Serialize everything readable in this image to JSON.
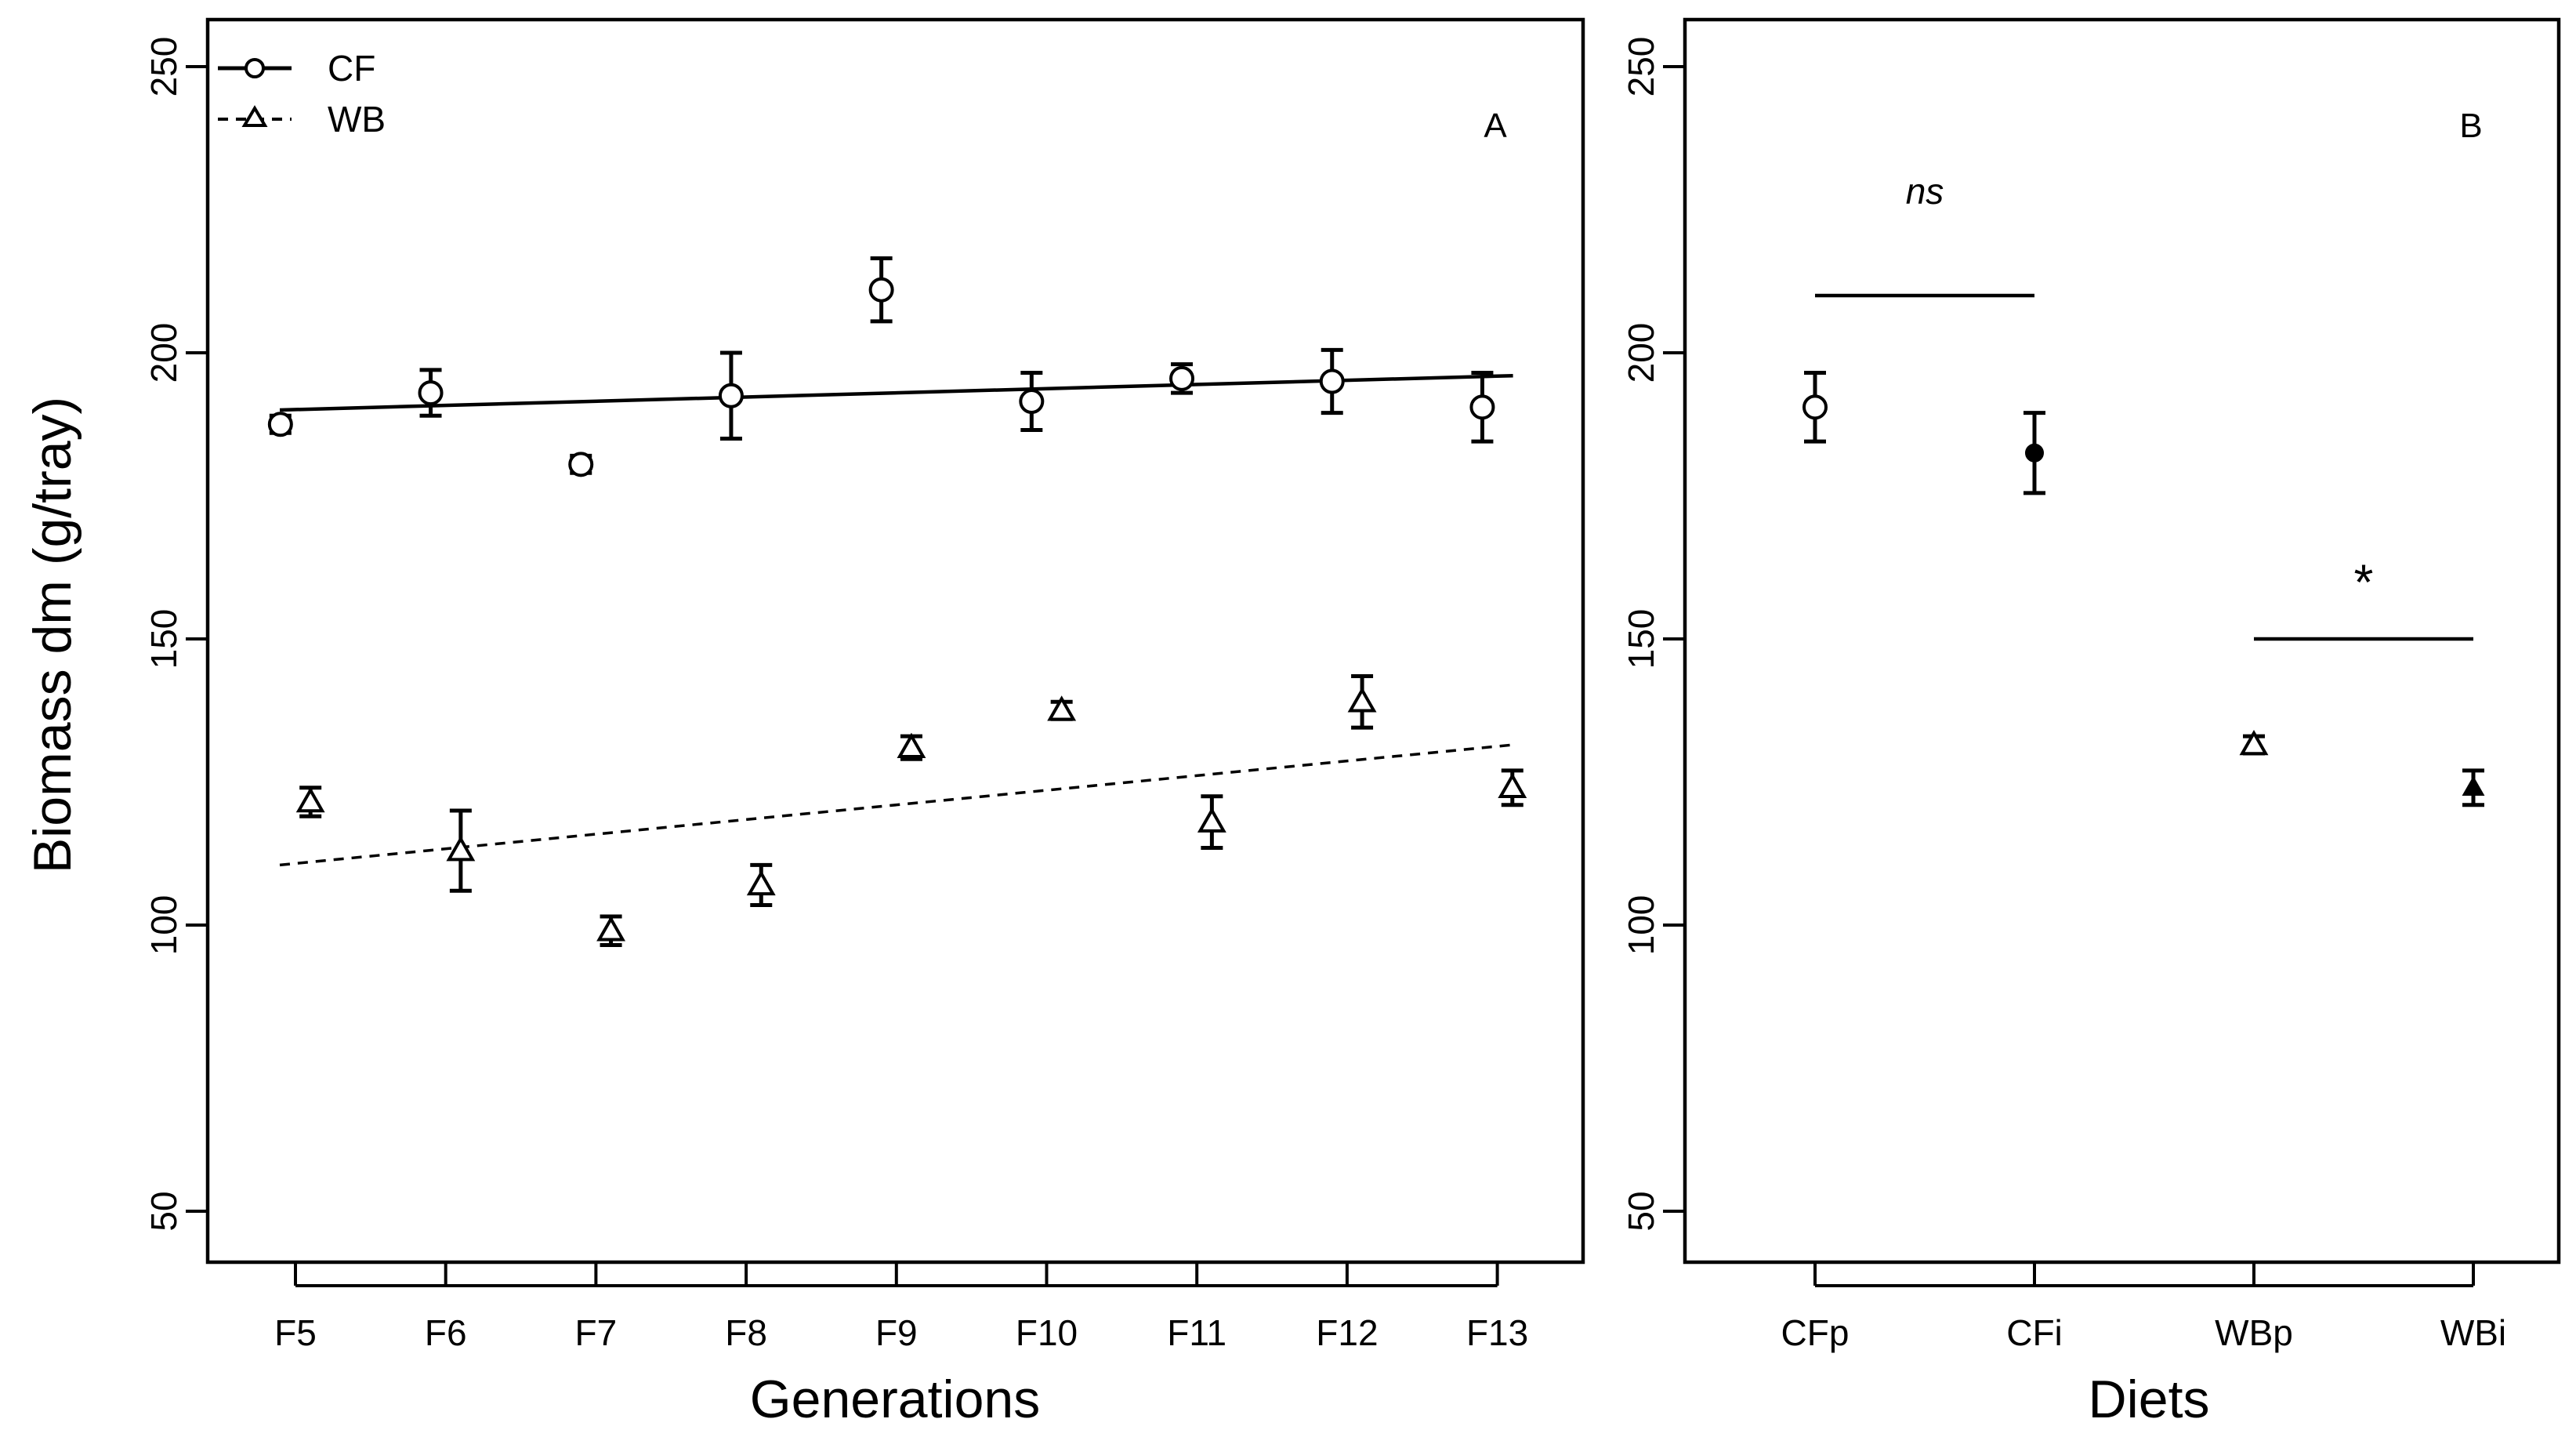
{
  "figure": {
    "ylabel": "Biomass dm (g/tray)"
  },
  "chart_data": [
    {
      "type": "scatter",
      "panel_label": "A",
      "xlabel": "Generations",
      "ylabel": "Biomass dm (g/tray)",
      "categories": [
        "F5",
        "F6",
        "F7",
        "F8",
        "F9",
        "F10",
        "F11",
        "F12",
        "F13"
      ],
      "ylim": [
        40,
        260
      ],
      "yticks": [
        50,
        100,
        150,
        200,
        250
      ],
      "legend_position": "top-left",
      "series": [
        {
          "name": "CF",
          "marker": "circle",
          "offset": -0.1,
          "values": [
            187.5,
            193,
            180.5,
            192.5,
            211,
            191.5,
            195.5,
            195,
            190.5
          ],
          "errors": [
            1.5,
            4,
            1.5,
            7.5,
            5.5,
            5,
            2.5,
            5.5,
            6
          ],
          "trend": {
            "style": "solid",
            "from": [
              0,
              190
            ],
            "to": [
              8,
              196
            ]
          }
        },
        {
          "name": "WB",
          "marker": "triangle",
          "offset": 0.1,
          "values": [
            121.5,
            113,
            99,
            107,
            131,
            137.5,
            118,
            139,
            124
          ],
          "errors": [
            2.5,
            7,
            2.5,
            3.5,
            2,
            1.5,
            4.5,
            4.5,
            3
          ],
          "trend": {
            "style": "dashed",
            "from": [
              0,
              110.5
            ],
            "to": [
              8,
              131.5
            ]
          }
        }
      ]
    },
    {
      "type": "scatter",
      "panel_label": "B",
      "xlabel": "Diets",
      "categories": [
        "CFp",
        "CFi",
        "WBp",
        "WBi"
      ],
      "ylim": [
        40,
        260
      ],
      "yticks": [
        50,
        100,
        150,
        200,
        250
      ],
      "points": [
        {
          "category": "CFp",
          "value": 190.5,
          "error": 6,
          "marker": "circle-open"
        },
        {
          "category": "CFi",
          "value": 182.5,
          "error": 7,
          "marker": "circle-filled"
        },
        {
          "category": "WBp",
          "value": 131.5,
          "error": 1.5,
          "marker": "triangle-open"
        },
        {
          "category": "WBi",
          "value": 124,
          "error": 3,
          "marker": "triangle-filled"
        }
      ],
      "annotations": [
        {
          "text": "ns",
          "style": "italic",
          "from": "CFp",
          "to": "CFi",
          "bar_y": 210,
          "text_y": 226
        },
        {
          "text": "*",
          "style": "normal",
          "from": "WBp",
          "to": "WBi",
          "bar_y": 150,
          "text_y": 161
        }
      ]
    }
  ]
}
